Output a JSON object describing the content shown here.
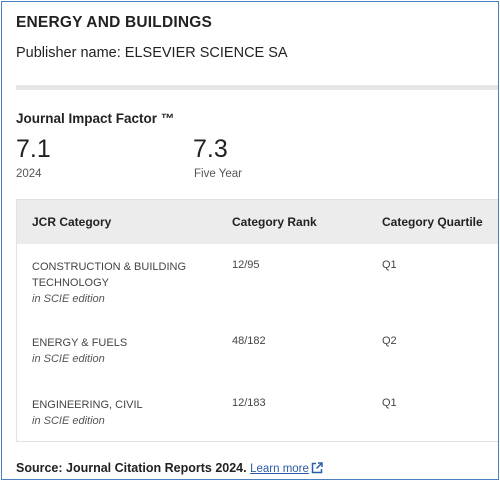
{
  "journal": {
    "title": "ENERGY AND BUILDINGS",
    "publisher": "Publisher name: ELSEVIER SCIENCE SA"
  },
  "impact": {
    "heading": "Journal Impact Factor ™",
    "metrics": [
      {
        "value": "7.1",
        "label": "2024"
      },
      {
        "value": "7.3",
        "label": "Five Year"
      }
    ]
  },
  "table": {
    "headers": [
      "JCR Category",
      "Category Rank",
      "Category Quartile"
    ],
    "rows": [
      {
        "category": "CONSTRUCTION & BUILDING TECHNOLOGY",
        "edition": "in SCIE edition",
        "rank": "12/95",
        "quartile": "Q1"
      },
      {
        "category": "ENERGY & FUELS",
        "edition": "in SCIE edition",
        "rank": "48/182",
        "quartile": "Q2"
      },
      {
        "category": "ENGINEERING, CIVIL",
        "edition": "in SCIE edition",
        "rank": "12/183",
        "quartile": "Q1"
      }
    ]
  },
  "source": {
    "text": "Source: Journal Citation Reports  2024.",
    "link_label": "Learn more",
    "link_icon": "external-link-icon",
    "link_color": "#2a5da8"
  },
  "colors": {
    "border": "#4a7fc1",
    "table_header_bg": "#ececec"
  }
}
